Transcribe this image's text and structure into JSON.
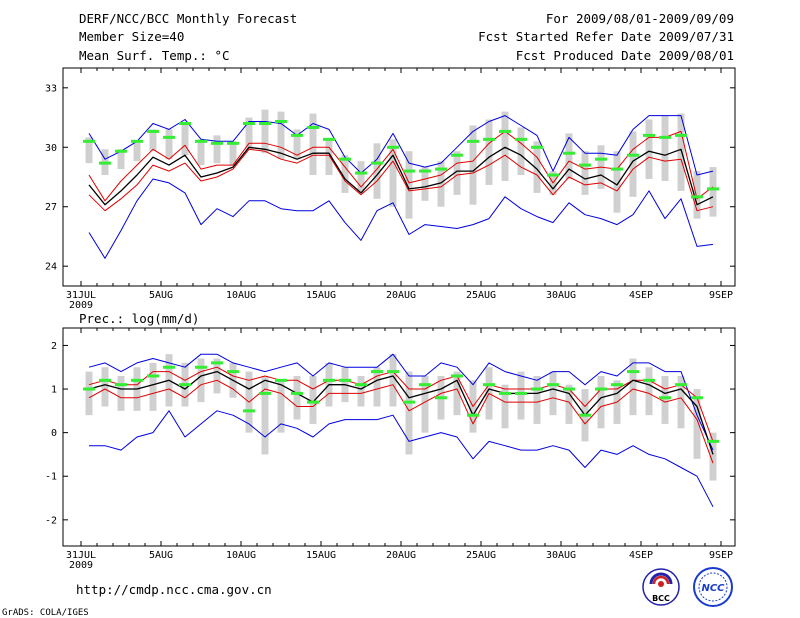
{
  "header": {
    "title": "DERF/NCC/BCC Monthly Forecast",
    "member_size": "Member Size=40",
    "variable_top": "Mean Surf. Temp.: °C",
    "period": "For 2009/08/01-2009/09/09",
    "fcst_started": "Fcst Started Refer Date 2009/07/31",
    "fcst_produced": "Fcst Produced Date 2009/08/01"
  },
  "panel_bottom_label": "Prec.: log(mm/d)",
  "footer": {
    "url": "http://cmdp.ncc.cma.gov.cn",
    "grads": "GrADS: COLA/IGES",
    "logo1_text": "BCC",
    "logo2_text": "NCC"
  },
  "colors": {
    "mean": "#000000",
    "spread": "#e00000",
    "envelope": "#0000e0",
    "box": "#d0d0d0",
    "obs": "#33ee33"
  },
  "chart_data": [
    {
      "type": "line",
      "title": "Mean Surf. Temp.: °C",
      "xlabel": "",
      "ylabel": "",
      "ylim": [
        23,
        34
      ],
      "yticks": [
        24,
        27,
        30,
        33
      ],
      "x_tick_labels": [
        "31JUL",
        "5AUG",
        "10AUG",
        "15AUG",
        "20AUG",
        "25AUG",
        "30AUG",
        "4SEP",
        "9SEP"
      ],
      "x_sub_label": "2009",
      "x_days": [
        0,
        1,
        2,
        3,
        4,
        5,
        6,
        7,
        8,
        9,
        10,
        11,
        12,
        13,
        14,
        15,
        16,
        17,
        18,
        19,
        20,
        21,
        22,
        23,
        24,
        25,
        26,
        27,
        28,
        29,
        30,
        31,
        32,
        33,
        34,
        35,
        36,
        37,
        38,
        39,
        40
      ],
      "series": [
        {
          "name": "max",
          "values": [
            30.7,
            29.4,
            29.8,
            30.3,
            31.2,
            30.9,
            31.4,
            30.4,
            30.3,
            30.3,
            31.3,
            31.3,
            31.2,
            30.6,
            31.2,
            30.9,
            29.5,
            28.7,
            29.4,
            30.7,
            29.2,
            29.0,
            29.2,
            30.0,
            30.8,
            31.3,
            31.6,
            31.1,
            30.6,
            28.8,
            30.5,
            29.7,
            29.7,
            29.6,
            30.9,
            31.6,
            31.6,
            31.6,
            28.6,
            28.8
          ]
        },
        {
          "name": "mean+sd",
          "values": [
            28.6,
            27.3,
            28.3,
            29.1,
            29.9,
            29.4,
            30.1,
            28.9,
            29.1,
            29.1,
            30.2,
            30.2,
            30.0,
            29.6,
            30.0,
            30.0,
            29.0,
            28.0,
            28.9,
            29.9,
            28.2,
            28.4,
            28.6,
            29.2,
            29.3,
            30.2,
            30.8,
            30.2,
            29.5,
            28.2,
            29.3,
            28.9,
            29.0,
            28.9,
            29.9,
            30.5,
            30.5,
            30.8,
            27.4,
            28.0
          ]
        },
        {
          "name": "mean",
          "values": [
            28.1,
            27.1,
            27.8,
            28.6,
            29.5,
            29.1,
            29.6,
            28.5,
            28.7,
            29.0,
            30.0,
            29.9,
            29.7,
            29.4,
            29.7,
            29.7,
            28.4,
            27.7,
            28.6,
            29.6,
            27.9,
            28.0,
            28.2,
            28.8,
            28.8,
            29.5,
            30.0,
            29.6,
            28.9,
            27.9,
            28.9,
            28.4,
            28.6,
            28.1,
            29.3,
            29.8,
            29.6,
            29.9,
            27.1,
            27.5
          ]
        },
        {
          "name": "mean-sd",
          "values": [
            27.6,
            26.8,
            27.4,
            28.1,
            29.1,
            28.8,
            29.2,
            28.3,
            28.5,
            28.9,
            29.9,
            29.8,
            29.4,
            29.2,
            29.6,
            29.6,
            28.3,
            27.6,
            28.3,
            29.3,
            27.8,
            27.9,
            28.0,
            28.6,
            28.7,
            29.1,
            29.6,
            29.0,
            28.6,
            27.6,
            28.5,
            28.1,
            28.2,
            27.8,
            28.9,
            29.5,
            29.3,
            29.4,
            26.8,
            27.0
          ]
        },
        {
          "name": "min",
          "values": [
            25.7,
            24.4,
            25.8,
            27.3,
            28.4,
            28.2,
            27.7,
            26.1,
            26.9,
            26.5,
            27.3,
            27.3,
            26.9,
            26.8,
            26.8,
            27.3,
            26.2,
            25.3,
            26.8,
            27.2,
            25.6,
            26.1,
            26.0,
            25.9,
            26.1,
            26.4,
            27.5,
            26.9,
            26.5,
            26.2,
            27.2,
            26.6,
            26.4,
            26.1,
            26.6,
            27.8,
            26.4,
            27.4,
            25.0,
            25.1
          ]
        },
        {
          "name": "box_top",
          "values": [
            30.5,
            29.9,
            29.9,
            30.3,
            30.9,
            30.9,
            31.2,
            30.4,
            30.6,
            30.3,
            31.5,
            31.9,
            31.8,
            30.9,
            31.7,
            30.4,
            29.6,
            29.3,
            30.2,
            30.4,
            29.8,
            29.0,
            29.3,
            29.8,
            31.1,
            31.4,
            31.8,
            31.0,
            30.3,
            28.8,
            30.7,
            29.8,
            30.1,
            29.8,
            30.8,
            31.4,
            31.6,
            31.7,
            28.8,
            29.0
          ]
        },
        {
          "name": "box_bottom",
          "values": [
            29.2,
            28.6,
            28.9,
            29.3,
            29.8,
            29.4,
            29.6,
            29.1,
            29.2,
            29.1,
            29.9,
            29.7,
            29.4,
            29.4,
            28.6,
            28.6,
            27.7,
            27.7,
            27.4,
            27.0,
            26.4,
            27.3,
            27.0,
            27.6,
            27.1,
            28.1,
            28.3,
            28.6,
            27.7,
            27.6,
            28.4,
            27.6,
            27.9,
            26.7,
            27.5,
            28.4,
            28.3,
            27.8,
            26.4,
            26.5
          ]
        },
        {
          "name": "observed",
          "values": [
            30.3,
            29.2,
            29.8,
            30.3,
            30.8,
            30.5,
            31.2,
            30.3,
            30.2,
            30.2,
            31.2,
            31.2,
            31.3,
            30.6,
            31.0,
            30.4,
            29.4,
            28.7,
            29.2,
            30.0,
            28.8,
            28.8,
            28.9,
            29.6,
            30.3,
            30.4,
            30.8,
            30.4,
            30.0,
            28.6,
            29.7,
            29.1,
            29.4,
            28.9,
            29.6,
            30.6,
            30.5,
            30.6,
            27.5,
            27.9
          ]
        }
      ]
    },
    {
      "type": "line",
      "title": "Prec.: log(mm/d)",
      "xlabel": "",
      "ylabel": "",
      "ylim": [
        -2.6,
        2.4
      ],
      "yticks": [
        -2,
        -1,
        0,
        1,
        2
      ],
      "x_tick_labels": [
        "31JUL",
        "5AUG",
        "10AUG",
        "15AUG",
        "20AUG",
        "25AUG",
        "30AUG",
        "4SEP",
        "9SEP"
      ],
      "x_sub_label": "2009",
      "x_days": [
        0,
        1,
        2,
        3,
        4,
        5,
        6,
        7,
        8,
        9,
        10,
        11,
        12,
        13,
        14,
        15,
        16,
        17,
        18,
        19,
        20,
        21,
        22,
        23,
        24,
        25,
        26,
        27,
        28,
        29,
        30,
        31,
        32,
        33,
        34,
        35,
        36,
        37,
        38,
        39,
        40
      ],
      "series": [
        {
          "name": "max",
          "values": [
            1.5,
            1.6,
            1.4,
            1.6,
            1.7,
            1.6,
            1.5,
            1.8,
            1.8,
            1.6,
            1.5,
            1.4,
            1.5,
            1.6,
            1.3,
            1.6,
            1.5,
            1.5,
            1.5,
            1.8,
            1.3,
            1.3,
            1.6,
            1.5,
            1.1,
            1.6,
            1.4,
            1.3,
            1.2,
            1.4,
            1.4,
            1.1,
            1.4,
            1.3,
            1.6,
            1.6,
            1.4,
            1.4,
            0.4,
            -0.4
          ]
        },
        {
          "name": "mean+sd",
          "values": [
            1.1,
            1.2,
            1.1,
            1.1,
            1.4,
            1.4,
            1.2,
            1.4,
            1.5,
            1.3,
            1.2,
            1.3,
            1.2,
            1.2,
            1.0,
            1.2,
            1.2,
            1.1,
            1.3,
            1.4,
            1.0,
            1.0,
            1.2,
            1.3,
            0.6,
            1.1,
            1.0,
            1.0,
            1.0,
            1.1,
            1.0,
            0.6,
            1.0,
            1.0,
            1.2,
            1.2,
            1.0,
            1.1,
            0.8,
            -0.2
          ]
        },
        {
          "name": "mean",
          "values": [
            1.0,
            1.1,
            1.0,
            1.0,
            1.1,
            1.2,
            1.0,
            1.3,
            1.4,
            1.2,
            1.0,
            1.2,
            1.1,
            0.9,
            0.7,
            1.1,
            1.1,
            1.0,
            1.2,
            1.3,
            0.8,
            0.9,
            1.0,
            1.2,
            0.4,
            1.0,
            0.9,
            0.9,
            0.9,
            1.0,
            0.9,
            0.4,
            0.8,
            0.9,
            1.2,
            1.1,
            0.9,
            1.0,
            0.6,
            -0.5
          ]
        },
        {
          "name": "mean-sd",
          "values": [
            0.8,
            1.0,
            0.8,
            0.8,
            0.9,
            1.0,
            0.8,
            1.1,
            1.2,
            1.0,
            0.7,
            1.0,
            0.9,
            0.6,
            0.6,
            0.9,
            0.9,
            0.9,
            1.0,
            1.1,
            0.5,
            0.7,
            0.9,
            1.0,
            0.2,
            0.9,
            0.7,
            0.7,
            0.7,
            0.8,
            0.7,
            0.2,
            0.6,
            0.7,
            1.0,
            0.9,
            0.7,
            0.8,
            0.3,
            -0.7
          ]
        },
        {
          "name": "min",
          "values": [
            -0.3,
            -0.3,
            -0.4,
            -0.1,
            0.0,
            0.5,
            -0.1,
            0.2,
            0.5,
            0.4,
            0.2,
            -0.1,
            0.2,
            0.1,
            -0.1,
            0.2,
            0.3,
            0.3,
            0.3,
            0.4,
            -0.2,
            -0.1,
            0.0,
            -0.1,
            -0.6,
            -0.2,
            -0.3,
            -0.4,
            -0.4,
            -0.3,
            -0.4,
            -0.8,
            -0.4,
            -0.5,
            -0.3,
            -0.5,
            -0.6,
            -0.8,
            -1.0,
            -1.7
          ]
        },
        {
          "name": "box_top",
          "values": [
            1.4,
            1.5,
            1.3,
            1.5,
            1.6,
            1.8,
            1.6,
            1.7,
            1.7,
            1.6,
            1.4,
            1.3,
            1.2,
            1.3,
            1.3,
            1.6,
            1.5,
            1.3,
            1.5,
            1.8,
            1.4,
            1.3,
            1.3,
            1.4,
            1.2,
            1.5,
            1.1,
            1.4,
            1.3,
            1.4,
            1.1,
            1.0,
            1.3,
            1.2,
            1.7,
            1.5,
            1.3,
            1.3,
            1.0,
            0.0
          ]
        },
        {
          "name": "box_bottom",
          "values": [
            0.4,
            0.6,
            0.5,
            0.5,
            0.5,
            0.6,
            0.6,
            0.7,
            0.9,
            0.8,
            0.0,
            -0.5,
            0.0,
            0.3,
            0.2,
            0.6,
            0.7,
            0.6,
            0.6,
            0.6,
            -0.5,
            0.0,
            0.3,
            0.4,
            0.0,
            0.3,
            0.1,
            0.3,
            0.2,
            0.4,
            0.2,
            -0.2,
            0.1,
            0.2,
            0.4,
            0.4,
            0.2,
            0.1,
            -0.6,
            -1.1
          ]
        },
        {
          "name": "observed",
          "values": [
            1.0,
            1.2,
            1.1,
            1.2,
            1.3,
            1.5,
            1.1,
            1.5,
            1.6,
            1.4,
            0.5,
            0.9,
            1.2,
            0.9,
            0.7,
            1.2,
            1.2,
            1.1,
            1.4,
            1.4,
            0.7,
            1.1,
            0.8,
            1.3,
            0.4,
            1.1,
            0.9,
            0.9,
            1.0,
            1.1,
            1.0,
            0.4,
            1.0,
            1.1,
            1.4,
            1.2,
            0.8,
            1.1,
            0.8,
            -0.2
          ]
        }
      ]
    }
  ]
}
